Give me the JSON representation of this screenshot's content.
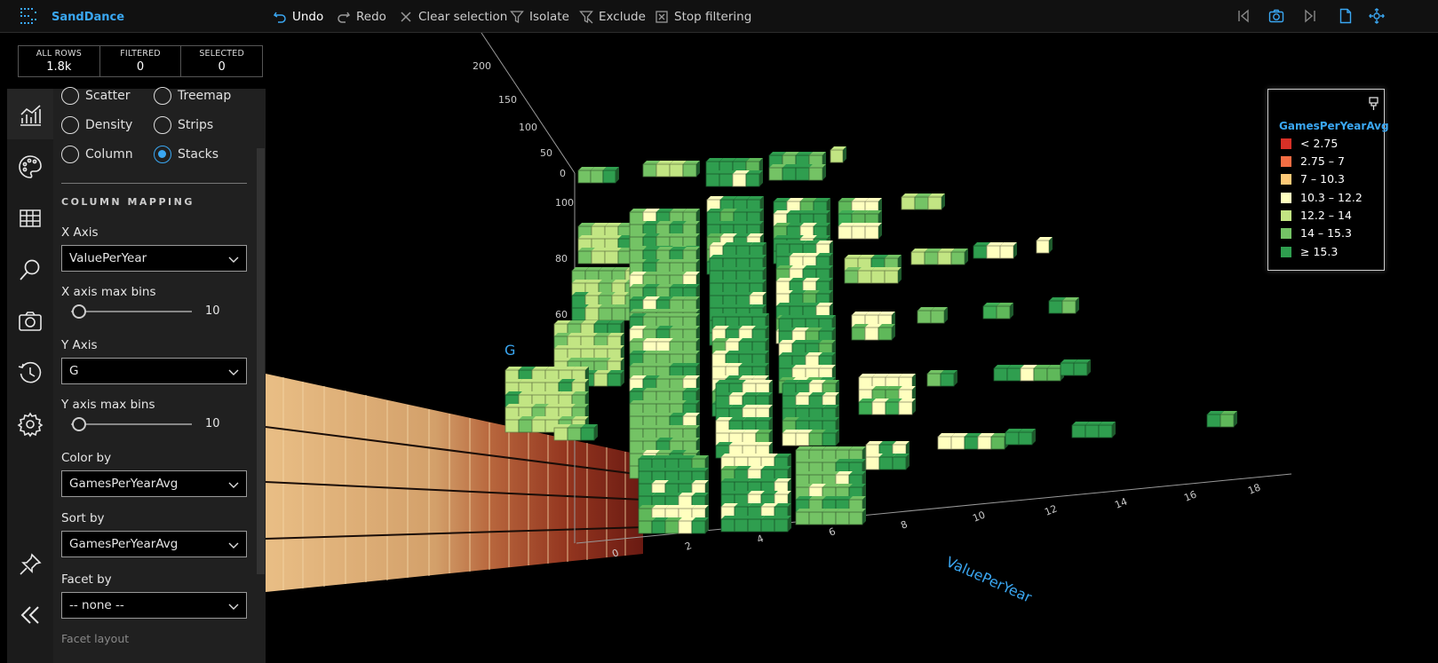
{
  "app": {
    "name": "SandDance"
  },
  "toolbar": {
    "undo": "Undo",
    "redo": "Redo",
    "clear_selection": "Clear selection",
    "isolate": "Isolate",
    "exclude": "Exclude",
    "stop_filtering": "Stop filtering"
  },
  "counts": {
    "all_rows_label": "ALL ROWS",
    "all_rows_value": "1.8k",
    "filtered_label": "FILTERED",
    "filtered_value": "0",
    "selected_label": "SELECTED",
    "selected_value": "0"
  },
  "chart_types": [
    {
      "label": "Scatter",
      "checked": false
    },
    {
      "label": "Treemap",
      "checked": false
    },
    {
      "label": "Density",
      "checked": false
    },
    {
      "label": "Strips",
      "checked": false
    },
    {
      "label": "Column",
      "checked": false
    },
    {
      "label": "Stacks",
      "checked": true
    }
  ],
  "mapping": {
    "section_title": "COLUMN MAPPING",
    "x_axis_label": "X Axis",
    "x_axis_value": "ValuePerYear",
    "x_bins_label": "X axis max bins",
    "x_bins_value": "10",
    "y_axis_label": "Y Axis",
    "y_axis_value": "G",
    "y_bins_label": "Y axis max bins",
    "y_bins_value": "10",
    "color_label": "Color by",
    "color_value": "GamesPerYearAvg",
    "sort_label": "Sort by",
    "sort_value": "GamesPerYearAvg",
    "facet_label": "Facet by",
    "facet_value": "-- none --",
    "facet_layout_label": "Facet layout"
  },
  "icons": [
    "chart-icon",
    "palette-icon",
    "table-icon",
    "search-icon",
    "camera-icon",
    "history-icon",
    "gear-icon",
    "pin-icon",
    "collapse-icon"
  ],
  "chart_data": {
    "type": "stacks-3d",
    "xlabel": "ValuePerYear",
    "ylabel": "G",
    "x_ticks": [
      "0",
      "2",
      "4",
      "6",
      "8",
      "10",
      "12",
      "14",
      "16",
      "18"
    ],
    "y_ticks": [
      "60",
      "80",
      "100"
    ],
    "z_ticks": [
      "0",
      "50",
      "100",
      "150",
      "200"
    ]
  },
  "legend": {
    "title": "GamesPerYearAvg",
    "items": [
      {
        "label": "< 2.75",
        "color": "#d73027"
      },
      {
        "label": "2.75 – 7",
        "color": "#f46d43"
      },
      {
        "label": "7 – 10.3",
        "color": "#fdc977"
      },
      {
        "label": "10.3 – 12.2",
        "color": "#ffffbf"
      },
      {
        "label": "12.2 – 14",
        "color": "#c2e583"
      },
      {
        "label": "14 – 15.3",
        "color": "#74c365"
      },
      {
        "label": "≥ 15.3",
        "color": "#2f9e4f"
      }
    ]
  }
}
